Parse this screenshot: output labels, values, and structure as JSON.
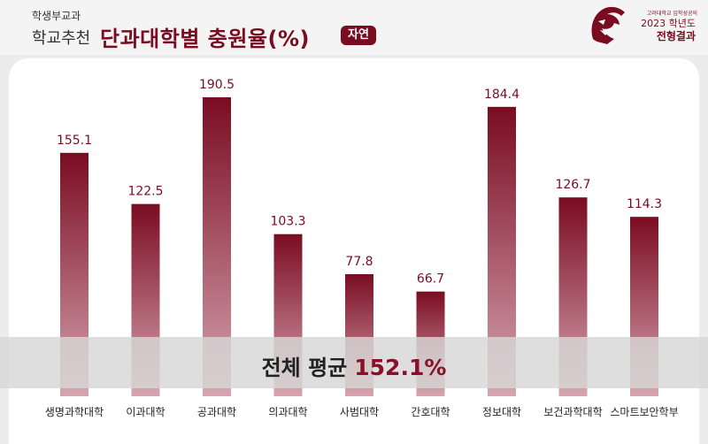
{
  "header": {
    "kicker": "학생부교과",
    "subject": "학교추천",
    "title": "단과대학별 충원율(%)",
    "badge": "자연"
  },
  "logo": {
    "small_text": "고려대학교 입학성공의",
    "year": "2023 학년도",
    "result": "전형결과"
  },
  "average": {
    "label": "전체 평균",
    "value": "152.1%"
  },
  "colors": {
    "bar_top": "#7a0c22",
    "bar_bottom": "#d6a5b0",
    "accent": "#7a0c22"
  },
  "chart_data": {
    "type": "bar",
    "categories": [
      "생명과학대학",
      "이과대학",
      "공과대학",
      "의과대학",
      "사범대학",
      "간호대학",
      "정보대학",
      "보건과학대학",
      "스마트보안학부"
    ],
    "values": [
      155.1,
      122.5,
      190.5,
      103.3,
      77.8,
      66.7,
      184.4,
      126.7,
      114.3
    ],
    "value_labels": [
      "155.1",
      "122.5",
      "190.5",
      "103.3",
      "77.8",
      "66.7",
      "184.4",
      "126.7",
      "114.3"
    ],
    "title": "단과대학별 충원율(%)",
    "xlabel": "",
    "ylabel": "",
    "ylim": [
      0,
      200
    ],
    "grid": false
  }
}
